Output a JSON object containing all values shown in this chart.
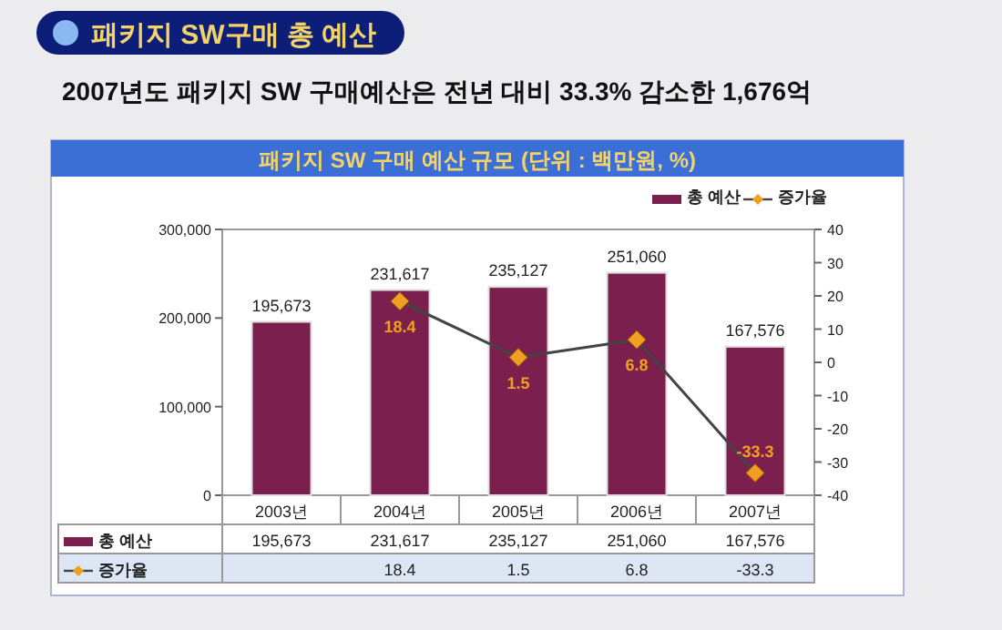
{
  "chart_data": {
    "type": "bar",
    "title": "패키지 SW구매 총 예산",
    "subtitle": "2007년도  패키지 SW 구매예산은 전년 대비 33.3% 감소한  1,676억",
    "annotations": [
      "패키지 SW 구매 예산 규모 (단위 : 백만원, %)"
    ],
    "categories": [
      "2003년",
      "2004년",
      "2005년",
      "2006년",
      "2007년"
    ],
    "series": [
      {
        "name": "총 예산",
        "color": "#7b1f4e",
        "values": [
          195673,
          231617,
          235127,
          251060,
          167576
        ],
        "value_labels": [
          "195,673",
          "231,617",
          "235,127",
          "251,060",
          "167,576"
        ]
      },
      {
        "name": "증가율",
        "type": "line",
        "axis": "y2",
        "color": "#f0a020",
        "marker": "diamond",
        "values": [
          null,
          18.4,
          1.5,
          6.8,
          -33.3
        ],
        "value_labels": [
          null,
          "18.4",
          "1.5",
          "6.8",
          "-33.3"
        ]
      }
    ],
    "ylim": [
      0,
      300000
    ],
    "yticks": [
      {
        "value": 0,
        "label": "0"
      },
      {
        "value": 100000,
        "label": "100,000"
      },
      {
        "value": 200000,
        "label": "200,000"
      },
      {
        "value": 300000,
        "label": "300,000"
      }
    ],
    "y2lim": [
      -40,
      40
    ],
    "y2ticks": [
      -40,
      -30,
      -20,
      -10,
      0,
      10,
      20,
      30,
      40
    ],
    "legend": "top right",
    "grid": false
  }
}
